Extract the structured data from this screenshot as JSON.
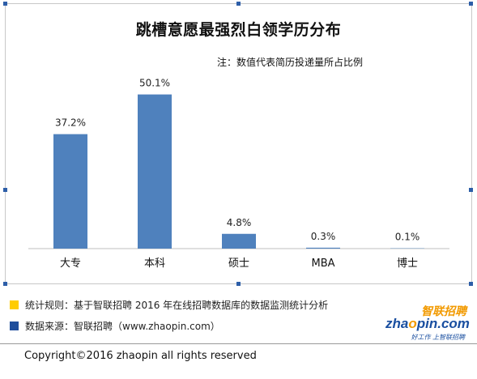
{
  "chart_data": {
    "type": "bar",
    "title": "跳槽意愿最强烈白领学历分布",
    "note": "注：数值代表简历投递量所占比例",
    "categories": [
      "大专",
      "本科",
      "硕士",
      "MBA",
      "博士"
    ],
    "values": [
      37.2,
      50.1,
      4.8,
      0.3,
      0.1
    ],
    "value_labels": [
      "37.2%",
      "50.1%",
      "4.8%",
      "0.3%",
      "0.1%"
    ],
    "ylim": [
      0,
      55
    ],
    "bar_color": "#4f81bd",
    "grid": false
  },
  "footer": {
    "rule_text": "统计规则：基于智联招聘 2016 年在线招聘数据库的数据监测统计分析",
    "source_text": "数据来源：智联招聘（www.zhaopin.com）",
    "rule_color": "#ffcc00",
    "source_color": "#1f4e9c",
    "copyright": "Copyright©2016 zhaopin all rights reserved"
  },
  "logo": {
    "cn": "智联招聘",
    "en_prefix": "zha",
    "en_o": "o",
    "en_suffix": "pin.com",
    "slogan": "好工作 上智联招聘"
  }
}
